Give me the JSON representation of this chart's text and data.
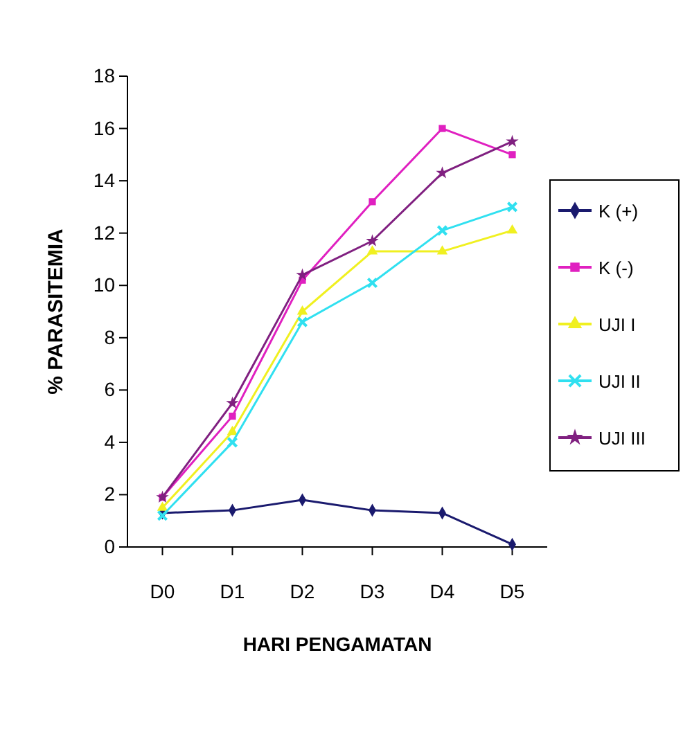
{
  "chart_data": {
    "type": "line",
    "xlabel": "HARI PENGAMATAN",
    "ylabel": "% PARASITEMIA",
    "categories": [
      "D0",
      "D1",
      "D2",
      "D3",
      "D4",
      "D5"
    ],
    "series": [
      {
        "name": "K (+)",
        "color": "#1a1a6e",
        "marker": "diamond",
        "values": [
          1.3,
          1.4,
          1.8,
          1.4,
          1.3,
          0.1
        ]
      },
      {
        "name": "K (-)",
        "color": "#e020c0",
        "marker": "square",
        "values": [
          1.9,
          5.0,
          10.2,
          13.2,
          16.0,
          15.0
        ]
      },
      {
        "name": "UJI I",
        "color": "#f0f020",
        "marker": "triangle",
        "values": [
          1.5,
          4.4,
          9.0,
          11.3,
          11.3,
          12.1
        ]
      },
      {
        "name": "UJI II",
        "color": "#30e0f0",
        "marker": "cross",
        "values": [
          1.2,
          4.0,
          8.6,
          10.1,
          12.1,
          13.0
        ]
      },
      {
        "name": "UJI III",
        "color": "#802080",
        "marker": "star",
        "values": [
          1.9,
          5.5,
          10.4,
          11.7,
          14.3,
          15.5
        ]
      }
    ],
    "ylim": [
      0,
      18
    ],
    "yticks": [
      0,
      2,
      4,
      6,
      8,
      10,
      12,
      14,
      16,
      18
    ],
    "grid": false,
    "legend": "right",
    "line_style": "solid"
  }
}
